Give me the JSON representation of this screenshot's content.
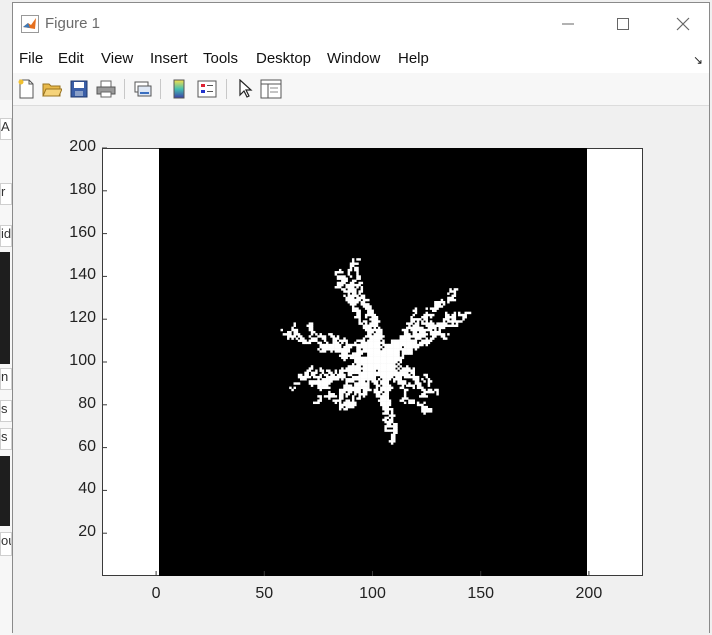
{
  "window": {
    "title": "Figure 1"
  },
  "menu": [
    "File",
    "Edit",
    "View",
    "Insert",
    "Tools",
    "Desktop",
    "Window",
    "Help"
  ],
  "toolbar_icons": [
    "new-figure-icon",
    "open-file-icon",
    "save-icon",
    "print-icon",
    "link-plot-icon",
    "insert-colorbar-icon",
    "insert-legend-icon",
    "edit-plot-icon",
    "property-inspector-icon"
  ],
  "background_fragments": [
    "A",
    "r c",
    "id",
    "n",
    "s",
    "s",
    "ou"
  ],
  "chart_data": {
    "type": "heatmap",
    "title": "",
    "xlabel": "",
    "ylabel": "",
    "xlim": [
      -25,
      225
    ],
    "ylim": [
      0,
      200
    ],
    "x_ticks": [
      "0",
      "50",
      "100",
      "150",
      "200"
    ],
    "y_ticks": [
      "20",
      "40",
      "60",
      "80",
      "100",
      "120",
      "140",
      "160",
      "180",
      "200"
    ],
    "image_extent": {
      "x": [
        0,
        200
      ],
      "y": [
        0,
        200
      ]
    },
    "colormap": [
      "#000000",
      "#ffffff"
    ],
    "description_values": {
      "cluster_center": [
        103,
        100
      ],
      "cluster_x_range": [
        55,
        145
      ],
      "cluster_y_range": [
        55,
        150
      ]
    }
  }
}
